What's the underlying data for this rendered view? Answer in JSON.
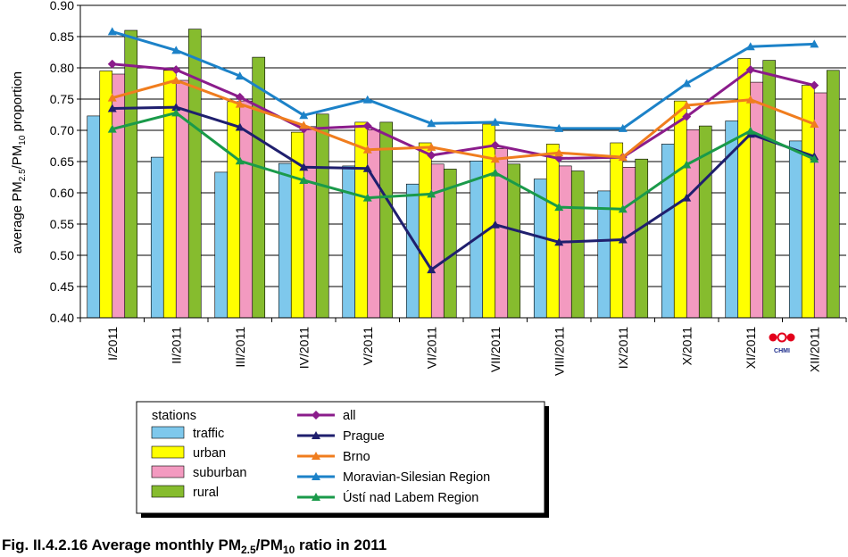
{
  "chart_data": {
    "type": "bar",
    "title": "",
    "ylabel": {
      "main": "average PM",
      "sub1": "2.5",
      "mid": "/PM",
      "sub2": "10",
      "end": " proportion"
    },
    "ylim": [
      0.4,
      0.9
    ],
    "yticks": [
      "0.40",
      "0.45",
      "0.50",
      "0.55",
      "0.60",
      "0.65",
      "0.70",
      "0.75",
      "0.80",
      "0.85",
      "0.90"
    ],
    "grid": true,
    "categories": [
      "I/2011",
      "II/2011",
      "III/2011",
      "IV/2011",
      "V/2011",
      "VI/2011",
      "VII/2011",
      "VIII/2011",
      "IX/2011",
      "X/2011",
      "XI/2011",
      "XII/2011"
    ],
    "bar_series": [
      {
        "name": "traffic",
        "color": "#7ec8ec",
        "values": [
          0.723,
          0.657,
          0.633,
          0.647,
          0.643,
          0.614,
          0.651,
          0.622,
          0.603,
          0.678,
          0.715,
          0.683
        ]
      },
      {
        "name": "urban",
        "color": "#ffff00",
        "values": [
          0.795,
          0.796,
          0.746,
          0.697,
          0.713,
          0.68,
          0.71,
          0.678,
          0.68,
          0.747,
          0.815,
          0.772
        ]
      },
      {
        "name": " suburban",
        "color": "#f39ac0",
        "values": [
          0.79,
          0.78,
          0.747,
          0.706,
          0.701,
          0.646,
          0.671,
          0.643,
          0.641,
          0.701,
          0.777,
          0.76
        ]
      },
      {
        "name": "rural",
        "color": "#86bc2e",
        "values": [
          0.86,
          0.862,
          0.817,
          0.726,
          0.713,
          0.638,
          0.646,
          0.635,
          0.654,
          0.707,
          0.812,
          0.796
        ]
      }
    ],
    "line_series": [
      {
        "name": "all",
        "color": "#8b1c8b",
        "marker": "diamond",
        "values": [
          0.806,
          0.797,
          0.753,
          0.702,
          0.707,
          0.66,
          0.676,
          0.655,
          0.657,
          0.722,
          0.797,
          0.772
        ]
      },
      {
        "name": "Prague",
        "color": "#1f1f6e",
        "marker": "triangle",
        "values": [
          0.735,
          0.737,
          0.705,
          0.641,
          0.639,
          0.477,
          0.549,
          0.521,
          0.525,
          0.592,
          0.694,
          0.658
        ]
      },
      {
        "name": "Brno",
        "color": "#f07d1e",
        "marker": "triangle",
        "values": [
          0.752,
          0.78,
          0.742,
          0.708,
          0.669,
          0.673,
          0.654,
          0.664,
          0.657,
          0.74,
          0.749,
          0.71
        ]
      },
      {
        "name": "Moravian-Silesian Region",
        "color": "#1c82c8",
        "marker": "triangle",
        "values": [
          0.858,
          0.828,
          0.787,
          0.724,
          0.749,
          0.711,
          0.713,
          0.703,
          0.703,
          0.775,
          0.834,
          0.838
        ]
      },
      {
        "name": "Ústí nad Labem Region",
        "color": "#1a9a4a",
        "marker": "triangle",
        "values": [
          0.702,
          0.728,
          0.651,
          0.62,
          0.592,
          0.598,
          0.632,
          0.577,
          0.574,
          0.645,
          0.699,
          0.654
        ]
      }
    ],
    "legend": {
      "title": "stations",
      "placement": "bottom"
    }
  },
  "logo": {
    "text": "CHMI",
    "colors": [
      "#e3001b",
      "#1a2a8a"
    ]
  },
  "caption": {
    "prefix": "Fig. II.4.2.16  Average monthly PM",
    "sub1": "2.5",
    "mid": "/PM",
    "sub2": "10",
    "suffix": " ratio in 2011"
  }
}
